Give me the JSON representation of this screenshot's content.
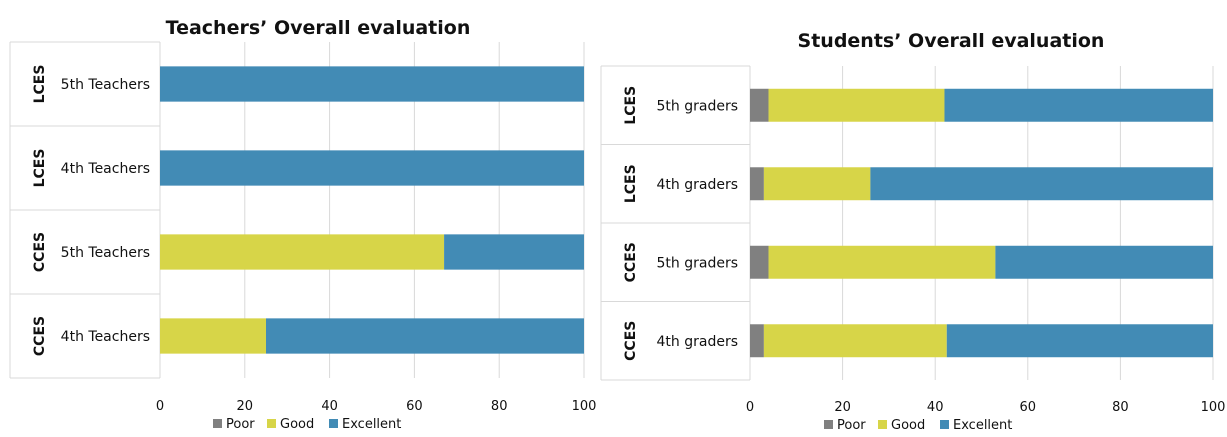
{
  "chart_data": [
    {
      "type": "bar",
      "orientation": "horizontal",
      "stacked": true,
      "title": "Teachers’ Overall evaluation",
      "categories": [
        "4th Teachers",
        "5th Teachers",
        "4th Teachers",
        "5th Teachers"
      ],
      "groups": [
        "CCES",
        "CCES",
        "LCES",
        "LCES"
      ],
      "series": [
        {
          "name": "Poor",
          "color": "#808080",
          "values": [
            0,
            0,
            0,
            0
          ]
        },
        {
          "name": "Good",
          "color": "#d7d548",
          "values": [
            25,
            67,
            0,
            0
          ]
        },
        {
          "name": "Excellent",
          "color": "#428bb5",
          "values": [
            75,
            33,
            100,
            100
          ]
        }
      ],
      "xlim": [
        0,
        100
      ],
      "xticks": [
        0,
        20,
        40,
        60,
        80,
        100
      ],
      "grid": true,
      "legend": "bottom"
    },
    {
      "type": "bar",
      "orientation": "horizontal",
      "stacked": true,
      "title": "Students’ Overall evaluation",
      "categories": [
        "4th graders",
        "5th graders",
        "4th graders",
        "5th graders"
      ],
      "groups": [
        "CCES",
        "CCES",
        "LCES",
        "LCES"
      ],
      "series": [
        {
          "name": "Poor",
          "color": "#808080",
          "values": [
            3,
            4,
            3,
            4
          ]
        },
        {
          "name": "Good",
          "color": "#d7d548",
          "values": [
            39.5,
            49,
            23,
            38
          ]
        },
        {
          "name": "Excellent",
          "color": "#428bb5",
          "values": [
            57.5,
            47,
            74,
            58
          ]
        }
      ],
      "xlim": [
        0,
        100
      ],
      "xticks": [
        0,
        20,
        40,
        60,
        80,
        100
      ],
      "grid": true,
      "legend": "bottom"
    }
  ]
}
